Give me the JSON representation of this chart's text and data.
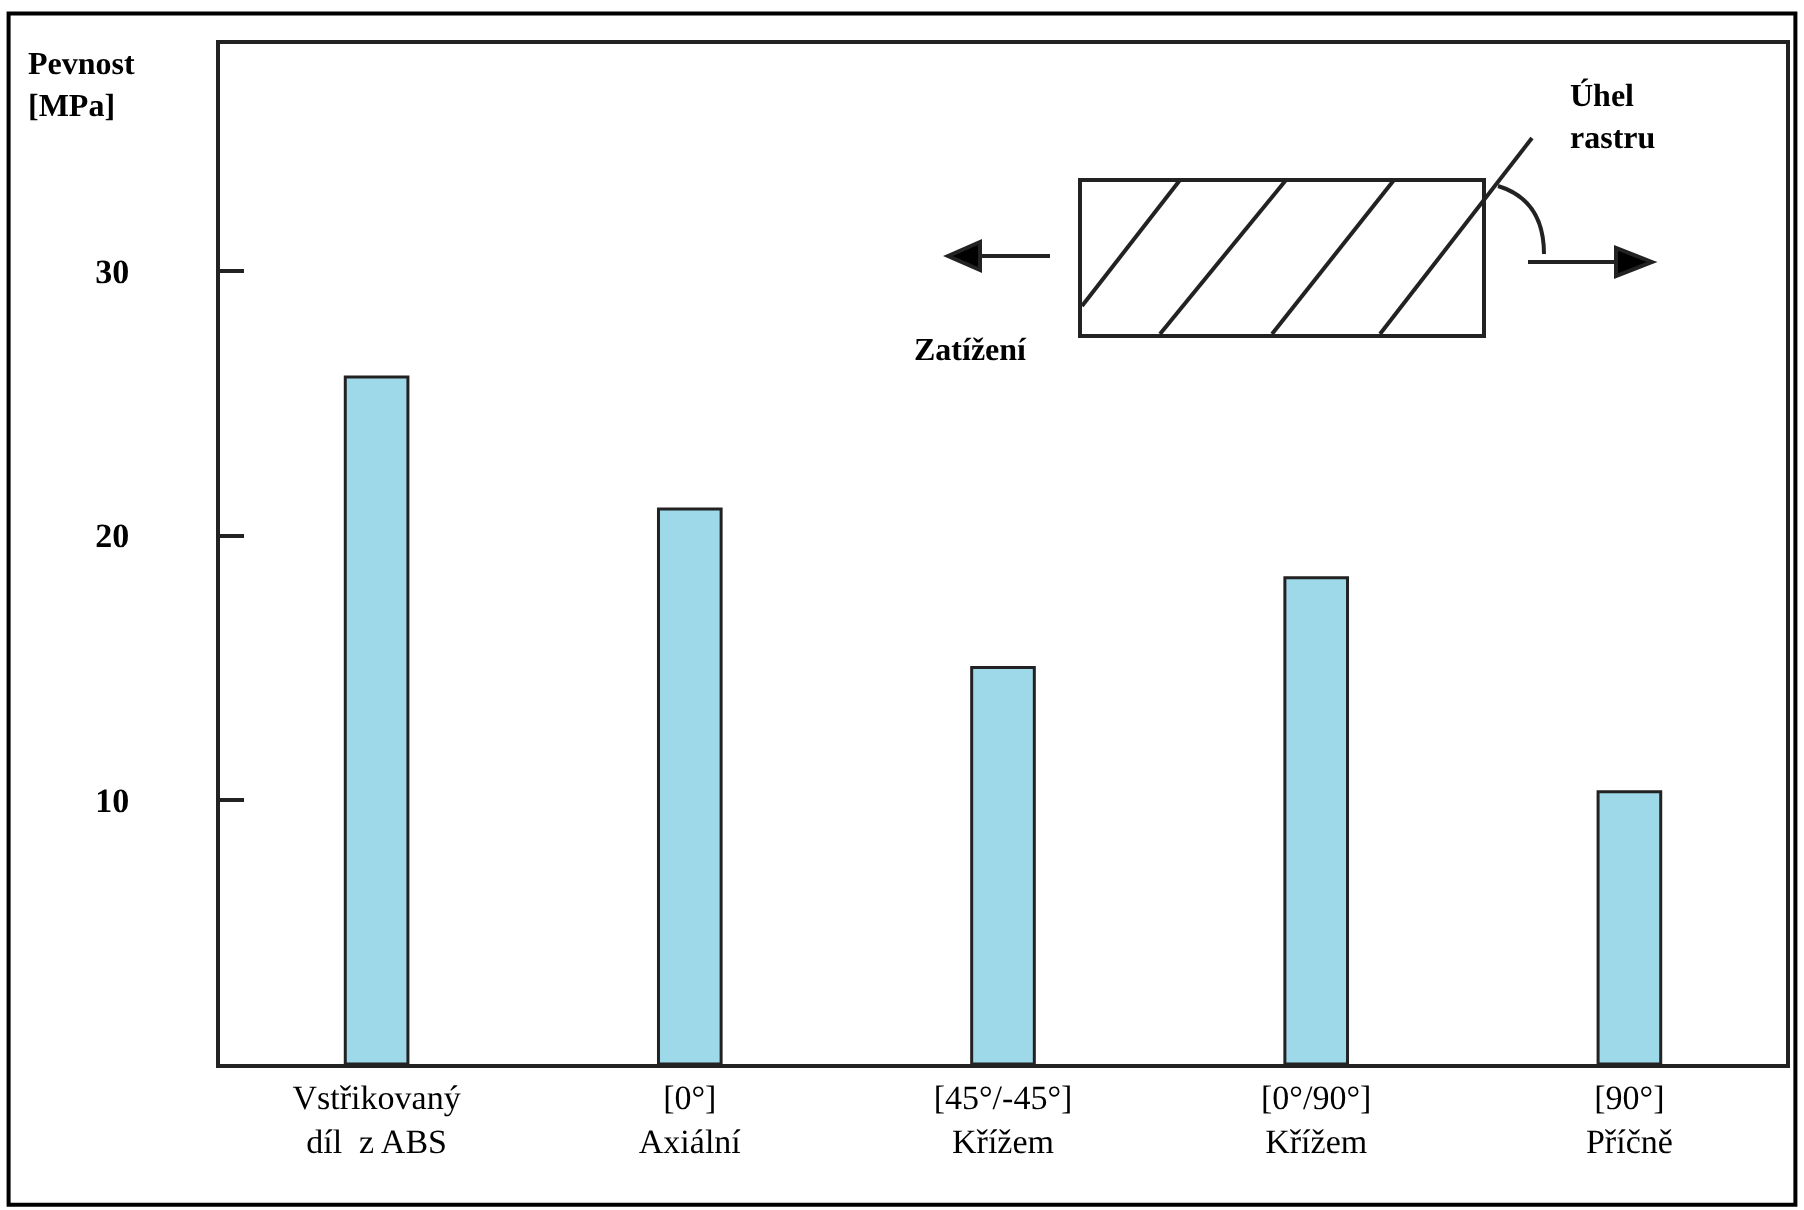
{
  "chart_data": {
    "type": "bar",
    "ylabel": "Pevnost\n[MPa]",
    "categories": [
      "Vstřikovaný\ndíl  z ABS",
      "[0°]\nAxiální",
      "[45°/-45°]\nKřížem",
      "[0°/90°]\nKřížem",
      "[90°]\nPříčně"
    ],
    "values": [
      26,
      21,
      15,
      18.4,
      10.3
    ],
    "color": "#9ed9ea",
    "ylim": [
      0,
      38.6
    ],
    "yticks": [
      10,
      20,
      30
    ],
    "annotations": [
      "Zatížení",
      "Úhel\nrastru"
    ]
  }
}
